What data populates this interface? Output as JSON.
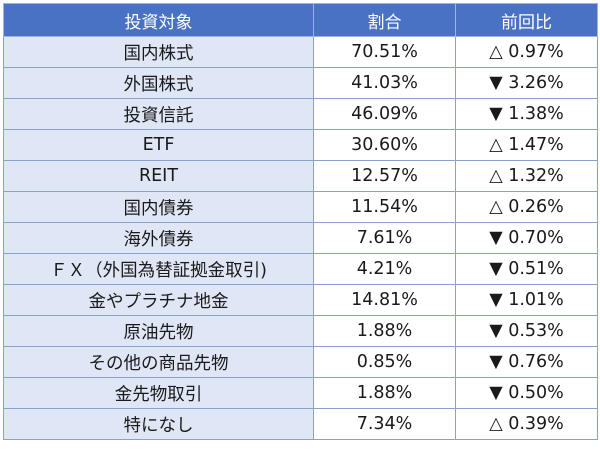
{
  "table": {
    "headers": [
      "投資対象",
      "割合",
      "前回比"
    ],
    "rows": [
      {
        "label": "国内株式",
        "ratio": "70.51%",
        "change": "△ 0.97%"
      },
      {
        "label": "外国株式",
        "ratio": "41.03%",
        "change": "▼ 3.26%"
      },
      {
        "label": "投資信託",
        "ratio": "46.09%",
        "change": "▼ 1.38%"
      },
      {
        "label": "ETF",
        "ratio": "30.60%",
        "change": "△ 1.47%"
      },
      {
        "label": "REIT",
        "ratio": "12.57%",
        "change": "△ 1.32%"
      },
      {
        "label": "国内債券",
        "ratio": "11.54%",
        "change": "△ 0.26%"
      },
      {
        "label": "海外債券",
        "ratio": "7.61%",
        "change": "▼ 0.70%"
      },
      {
        "label": "ＦＸ（外国為替証拠金取引)",
        "ratio": "4.21%",
        "change": "▼ 0.51%"
      },
      {
        "label": "金やプラチナ地金",
        "ratio": "14.81%",
        "change": "▼ 1.01%"
      },
      {
        "label": "原油先物",
        "ratio": "1.88%",
        "change": "▼ 0.53%"
      },
      {
        "label": "その他の商品先物",
        "ratio": "0.85%",
        "change": "▼ 0.76%"
      },
      {
        "label": "金先物取引",
        "ratio": "1.88%",
        "change": "▼ 0.50%"
      },
      {
        "label": "特になし",
        "ratio": "7.34%",
        "change": "△ 0.39%"
      }
    ]
  }
}
